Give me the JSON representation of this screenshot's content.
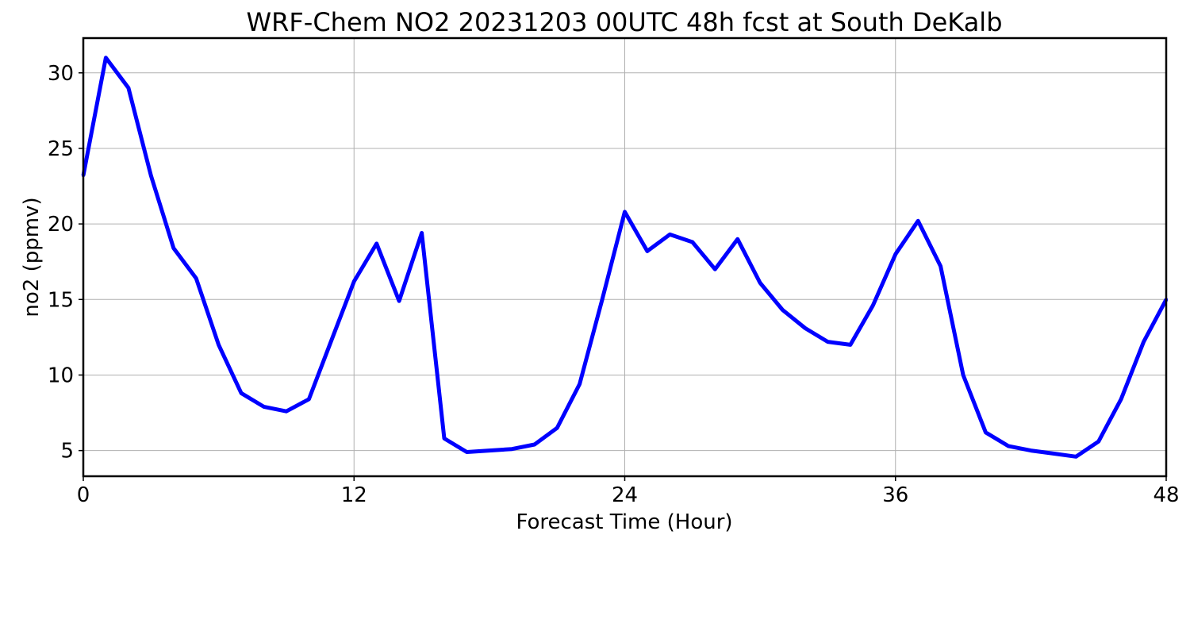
{
  "chart_data": {
    "type": "line",
    "title": "WRF-Chem NO2  20231203 00UTC 48h fcst at South DeKalb",
    "xlabel": "Forecast Time (Hour)",
    "ylabel": "no2  (ppmv)",
    "xlim": [
      0,
      48
    ],
    "ylim": [
      3.3,
      32.3
    ],
    "xticks": [
      0,
      12,
      24,
      36,
      48
    ],
    "yticks": [
      5,
      10,
      15,
      20,
      25,
      30
    ],
    "grid": true,
    "legend": "none",
    "series": [
      {
        "color": "#0000ff",
        "x": [
          0,
          1,
          2,
          3,
          4,
          5,
          6,
          7,
          8,
          9,
          10,
          11,
          12,
          13,
          14,
          15,
          16,
          17,
          18,
          19,
          20,
          21,
          22,
          23,
          24,
          25,
          26,
          27,
          28,
          29,
          30,
          31,
          32,
          33,
          34,
          35,
          36,
          37,
          38,
          39,
          40,
          41,
          42,
          43,
          44,
          45,
          46,
          47,
          48
        ],
        "y": [
          23.2,
          31.0,
          29.0,
          23.2,
          18.4,
          16.4,
          12.0,
          8.8,
          7.9,
          7.6,
          8.4,
          12.3,
          16.2,
          18.7,
          14.9,
          19.4,
          5.8,
          4.9,
          5.0,
          5.1,
          5.4,
          6.5,
          9.4,
          15.0,
          20.8,
          18.2,
          19.3,
          18.8,
          17.0,
          19.0,
          16.1,
          14.3,
          13.1,
          12.2,
          12.0,
          14.6,
          18.0,
          20.2,
          17.2,
          10.0,
          6.2,
          5.3,
          5.0,
          4.8,
          4.6,
          5.6,
          8.4,
          12.2,
          15.0
        ]
      }
    ]
  }
}
